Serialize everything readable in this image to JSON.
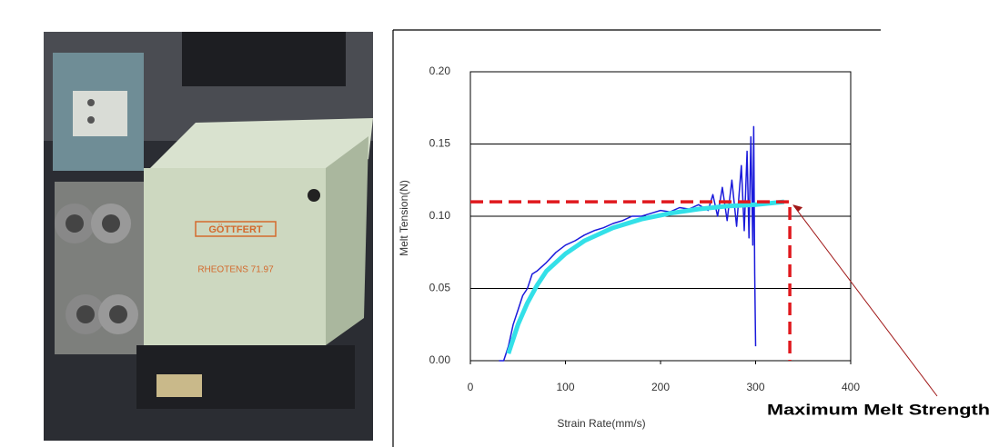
{
  "photo": {
    "brand": "GÖTTFERT",
    "model": "RHEOTENS 71.97"
  },
  "chart_data": {
    "type": "line",
    "xlabel": "Strain Rate(mm/s)",
    "ylabel": "Melt Tension(N)",
    "xlim": [
      0,
      400
    ],
    "xticks": [
      0,
      100,
      200,
      300,
      400
    ],
    "ylim": [
      0,
      0.2
    ],
    "yticks": [
      {
        "value": 0,
        "label": "0.00"
      },
      {
        "value": 0.05,
        "label": "0.05"
      },
      {
        "value": 0.1,
        "label": "0.10"
      },
      {
        "value": 0.15,
        "label": "0.15"
      },
      {
        "value": 0.2,
        "label": "0.20"
      }
    ],
    "grid": true,
    "series": [
      {
        "color": "#1a1adb",
        "width": 1.5,
        "x": [
          30,
          35,
          40,
          45,
          50,
          55,
          60,
          65,
          70,
          80,
          90,
          100,
          110,
          120,
          130,
          140,
          150,
          160,
          170,
          180,
          190,
          200,
          210,
          220,
          230,
          240,
          250,
          255,
          260,
          265,
          270,
          275,
          280,
          285,
          288,
          291,
          293,
          295,
          297,
          298,
          299,
          300
        ],
        "values": [
          0,
          0,
          0.01,
          0.025,
          0.035,
          0.045,
          0.05,
          0.06,
          0.062,
          0.068,
          0.075,
          0.08,
          0.083,
          0.087,
          0.09,
          0.092,
          0.095,
          0.097,
          0.1,
          0.1,
          0.102,
          0.104,
          0.103,
          0.106,
          0.105,
          0.108,
          0.104,
          0.115,
          0.1,
          0.12,
          0.097,
          0.125,
          0.093,
          0.135,
          0.09,
          0.145,
          0.085,
          0.155,
          0.08,
          0.162,
          0.06,
          0.01
        ]
      },
      {
        "color": "#33e0e8",
        "width": 5,
        "x": [
          40,
          50,
          60,
          70,
          80,
          100,
          120,
          150,
          180,
          210,
          240,
          270,
          300,
          330
        ],
        "values": [
          0.005,
          0.025,
          0.04,
          0.052,
          0.062,
          0.074,
          0.083,
          0.092,
          0.098,
          0.102,
          0.105,
          0.107,
          0.108,
          0.11
        ]
      },
      {
        "color": "#e0191e",
        "width": 3.5,
        "dash": true,
        "x": [
          0,
          336,
          336
        ],
        "values": [
          0.11,
          0.11,
          0
        ]
      }
    ],
    "annotations": [
      {
        "text": "Maximum Melt Strength",
        "x": 336,
        "y": 0.11,
        "color": "#a01818"
      }
    ]
  }
}
